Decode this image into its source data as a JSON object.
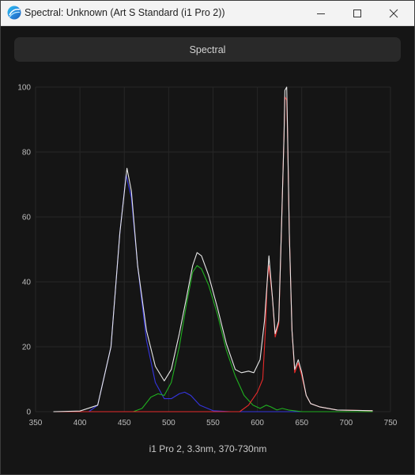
{
  "window": {
    "title": "Spectral: Unknown (Art S Standard (i1 Pro 2))",
    "app_icon": "displaycal-icon",
    "controls": [
      "minimize-icon",
      "maximize-icon",
      "close-icon"
    ]
  },
  "tab": {
    "label": "Spectral"
  },
  "chart_data": {
    "type": "line",
    "title": "",
    "xlabel": "i1 Pro 2, 3.3nm, 370-730nm",
    "ylabel": "",
    "xlim": [
      350,
      750
    ],
    "ylim": [
      0,
      100
    ],
    "x_ticks": [
      350,
      400,
      450,
      500,
      550,
      600,
      650,
      700,
      750
    ],
    "y_ticks": [
      0,
      20,
      40,
      60,
      80,
      100
    ],
    "grid": true,
    "background": "#151515",
    "series": [
      {
        "color": "#e8e8e8",
        "points": [
          [
            370,
            0
          ],
          [
            400,
            0.2
          ],
          [
            420,
            2
          ],
          [
            435,
            20
          ],
          [
            445,
            55
          ],
          [
            453,
            75
          ],
          [
            458,
            68
          ],
          [
            465,
            45
          ],
          [
            475,
            25
          ],
          [
            485,
            14
          ],
          [
            495,
            9.5
          ],
          [
            503,
            13
          ],
          [
            512,
            24
          ],
          [
            520,
            35
          ],
          [
            527,
            45
          ],
          [
            532,
            49
          ],
          [
            537,
            48
          ],
          [
            545,
            42
          ],
          [
            555,
            32
          ],
          [
            565,
            21
          ],
          [
            575,
            13
          ],
          [
            582,
            12
          ],
          [
            590,
            12.5
          ],
          [
            596,
            12
          ],
          [
            603,
            16
          ],
          [
            608,
            28
          ],
          [
            611,
            40
          ],
          [
            613,
            48
          ],
          [
            617,
            35
          ],
          [
            620,
            24
          ],
          [
            624,
            28
          ],
          [
            627,
            55
          ],
          [
            630,
            85
          ],
          [
            631,
            99
          ],
          [
            633,
            100
          ],
          [
            634,
            86
          ],
          [
            636,
            55
          ],
          [
            639,
            25
          ],
          [
            642,
            13
          ],
          [
            646,
            16
          ],
          [
            650,
            12
          ],
          [
            655,
            5
          ],
          [
            660,
            2.5
          ],
          [
            670,
            1.5
          ],
          [
            690,
            0.5
          ],
          [
            730,
            0.3
          ]
        ]
      },
      {
        "color": "#3535e0",
        "points": [
          [
            370,
            0
          ],
          [
            410,
            0
          ],
          [
            420,
            2
          ],
          [
            435,
            20
          ],
          [
            445,
            55
          ],
          [
            452,
            73
          ],
          [
            458,
            66
          ],
          [
            465,
            45
          ],
          [
            475,
            22
          ],
          [
            485,
            9
          ],
          [
            495,
            4
          ],
          [
            503,
            4
          ],
          [
            512,
            5.5
          ],
          [
            518,
            6
          ],
          [
            525,
            5
          ],
          [
            535,
            2
          ],
          [
            550,
            0.3
          ],
          [
            570,
            0
          ],
          [
            730,
            0
          ]
        ]
      },
      {
        "color": "#20b020",
        "points": [
          [
            370,
            0
          ],
          [
            460,
            0
          ],
          [
            470,
            1
          ],
          [
            480,
            4.5
          ],
          [
            488,
            5.5
          ],
          [
            495,
            5
          ],
          [
            503,
            9
          ],
          [
            512,
            20
          ],
          [
            520,
            33
          ],
          [
            527,
            43
          ],
          [
            532,
            45
          ],
          [
            537,
            44
          ],
          [
            545,
            39
          ],
          [
            555,
            30
          ],
          [
            565,
            19
          ],
          [
            575,
            11
          ],
          [
            585,
            5
          ],
          [
            595,
            2
          ],
          [
            603,
            1
          ],
          [
            610,
            2
          ],
          [
            615,
            1.5
          ],
          [
            622,
            0.5
          ],
          [
            628,
            1
          ],
          [
            635,
            0.5
          ],
          [
            650,
            0
          ],
          [
            730,
            0
          ]
        ]
      },
      {
        "color": "#e82a2a",
        "points": [
          [
            370,
            0
          ],
          [
            580,
            0
          ],
          [
            590,
            2
          ],
          [
            600,
            6
          ],
          [
            606,
            10
          ],
          [
            609,
            25
          ],
          [
            611,
            40
          ],
          [
            613,
            45
          ],
          [
            617,
            35
          ],
          [
            620,
            23
          ],
          [
            624,
            27
          ],
          [
            627,
            55
          ],
          [
            630,
            85
          ],
          [
            631,
            97
          ],
          [
            633,
            96
          ],
          [
            634,
            85
          ],
          [
            636,
            55
          ],
          [
            639,
            25
          ],
          [
            642,
            12
          ],
          [
            646,
            15
          ],
          [
            650,
            11
          ],
          [
            655,
            5
          ],
          [
            660,
            2.5
          ],
          [
            670,
            1.5
          ],
          [
            690,
            0.5
          ],
          [
            730,
            0.3
          ]
        ]
      }
    ]
  }
}
